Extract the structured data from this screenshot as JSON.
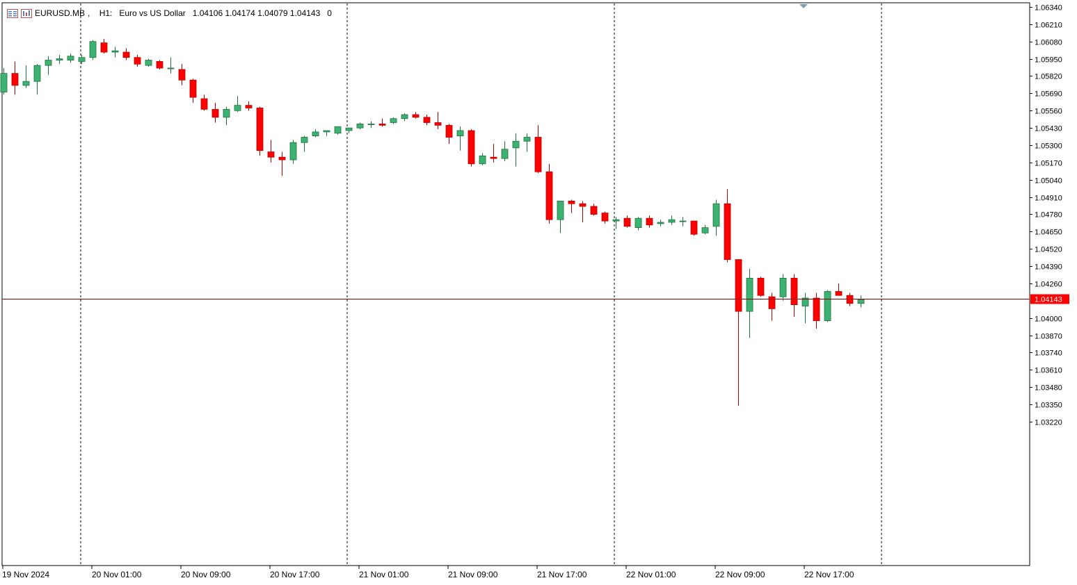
{
  "header": {
    "symbol": "EURUSD.MB",
    "timeframe": "H1:",
    "description": "Euro vs US Dollar",
    "ohlc": "1.04106 1.04174 1.04079 1.04143",
    "volume": "0",
    "icons": [
      "chart-menu-icon",
      "window-controls-icon"
    ]
  },
  "colors": {
    "bull": "#3cb371",
    "bear": "#ff0000",
    "grid": "#000000",
    "price_line": "#8b0000",
    "price_label_bg": "#ff0000",
    "price_label_text": "#ffffff"
  },
  "price_axis": {
    "labels": [
      "1.06340",
      "1.06210",
      "1.06080",
      "1.05950",
      "1.05820",
      "1.05690",
      "1.05560",
      "1.05430",
      "1.05300",
      "1.05170",
      "1.05040",
      "1.04910",
      "1.04780",
      "1.04650",
      "1.04520",
      "1.04390",
      "1.04260",
      "1.04000",
      "1.03870",
      "1.03740",
      "1.03610",
      "1.03480",
      "1.03350",
      "1.03220"
    ],
    "current_price_label": "1.04143"
  },
  "time_axis": {
    "labels": [
      "19 Nov 2024",
      "20 Nov 01:00",
      "20 Nov 09:00",
      "20 Nov 17:00",
      "21 Nov 01:00",
      "21 Nov 09:00",
      "21 Nov 17:00",
      "22 Nov 01:00",
      "22 Nov 09:00",
      "22 Nov 17:00"
    ]
  },
  "chart_data": {
    "type": "candlestick",
    "symbol": "EURUSD.MB",
    "timeframe": "H1",
    "current_price": 1.04143,
    "ylim": [
      1.0316,
      1.0638
    ],
    "candles": [
      {
        "o": 1.057,
        "h": 1.0588,
        "l": 1.0568,
        "c": 1.0584
      },
      {
        "o": 1.0584,
        "h": 1.0593,
        "l": 1.0568,
        "c": 1.0575
      },
      {
        "o": 1.0575,
        "h": 1.059,
        "l": 1.0573,
        "c": 1.0578
      },
      {
        "o": 1.0578,
        "h": 1.0591,
        "l": 1.0568,
        "c": 1.059
      },
      {
        "o": 1.059,
        "h": 1.0597,
        "l": 1.0583,
        "c": 1.0594
      },
      {
        "o": 1.0594,
        "h": 1.0598,
        "l": 1.0591,
        "c": 1.0595
      },
      {
        "o": 1.0594,
        "h": 1.0599,
        "l": 1.0592,
        "c": 1.0597
      },
      {
        "o": 1.0593,
        "h": 1.0598,
        "l": 1.0591,
        "c": 1.0596
      },
      {
        "o": 1.0596,
        "h": 1.0609,
        "l": 1.0594,
        "c": 1.0608
      },
      {
        "o": 1.0607,
        "h": 1.061,
        "l": 1.0599,
        "c": 1.06
      },
      {
        "o": 1.06,
        "h": 1.0604,
        "l": 1.0596,
        "c": 1.0601
      },
      {
        "o": 1.06,
        "h": 1.0603,
        "l": 1.0594,
        "c": 1.0596
      },
      {
        "o": 1.0596,
        "h": 1.0598,
        "l": 1.0589,
        "c": 1.0591
      },
      {
        "o": 1.059,
        "h": 1.0595,
        "l": 1.0589,
        "c": 1.0594
      },
      {
        "o": 1.0593,
        "h": 1.0594,
        "l": 1.0587,
        "c": 1.0588
      },
      {
        "o": 1.0588,
        "h": 1.0596,
        "l": 1.0584,
        "c": 1.0588
      },
      {
        "o": 1.0587,
        "h": 1.0591,
        "l": 1.0575,
        "c": 1.0579
      },
      {
        "o": 1.0579,
        "h": 1.058,
        "l": 1.0562,
        "c": 1.0566
      },
      {
        "o": 1.0565,
        "h": 1.0568,
        "l": 1.0556,
        "c": 1.0557
      },
      {
        "o": 1.0557,
        "h": 1.0562,
        "l": 1.0547,
        "c": 1.0551
      },
      {
        "o": 1.0551,
        "h": 1.0559,
        "l": 1.0545,
        "c": 1.0557
      },
      {
        "o": 1.0556,
        "h": 1.0567,
        "l": 1.0555,
        "c": 1.056
      },
      {
        "o": 1.056,
        "h": 1.0563,
        "l": 1.0556,
        "c": 1.0558
      },
      {
        "o": 1.0558,
        "h": 1.0559,
        "l": 1.0522,
        "c": 1.0526
      },
      {
        "o": 1.0525,
        "h": 1.0534,
        "l": 1.0517,
        "c": 1.0521
      },
      {
        "o": 1.0521,
        "h": 1.0525,
        "l": 1.0507,
        "c": 1.0519
      },
      {
        "o": 1.0519,
        "h": 1.0534,
        "l": 1.0516,
        "c": 1.0532
      },
      {
        "o": 1.0532,
        "h": 1.0537,
        "l": 1.0525,
        "c": 1.0536
      },
      {
        "o": 1.0537,
        "h": 1.0542,
        "l": 1.0536,
        "c": 1.054
      },
      {
        "o": 1.054,
        "h": 1.0541,
        "l": 1.0537,
        "c": 1.0541
      },
      {
        "o": 1.0539,
        "h": 1.0544,
        "l": 1.0538,
        "c": 1.0544
      },
      {
        "o": 1.0541,
        "h": 1.0543,
        "l": 1.0539,
        "c": 1.0543
      },
      {
        "o": 1.0543,
        "h": 1.0547,
        "l": 1.0542,
        "c": 1.0546
      },
      {
        "o": 1.0546,
        "h": 1.0548,
        "l": 1.0543,
        "c": 1.0546
      },
      {
        "o": 1.0546,
        "h": 1.055,
        "l": 1.0544,
        "c": 1.0545
      },
      {
        "o": 1.0547,
        "h": 1.0551,
        "l": 1.0546,
        "c": 1.055
      },
      {
        "o": 1.055,
        "h": 1.0554,
        "l": 1.0548,
        "c": 1.0553
      },
      {
        "o": 1.0553,
        "h": 1.0555,
        "l": 1.055,
        "c": 1.0551
      },
      {
        "o": 1.0551,
        "h": 1.0553,
        "l": 1.0545,
        "c": 1.0547
      },
      {
        "o": 1.0547,
        "h": 1.0555,
        "l": 1.0542,
        "c": 1.0545
      },
      {
        "o": 1.0545,
        "h": 1.0546,
        "l": 1.0531,
        "c": 1.0536
      },
      {
        "o": 1.0537,
        "h": 1.0544,
        "l": 1.0526,
        "c": 1.0541
      },
      {
        "o": 1.0541,
        "h": 1.0542,
        "l": 1.0514,
        "c": 1.0516
      },
      {
        "o": 1.0516,
        "h": 1.0524,
        "l": 1.0515,
        "c": 1.0522
      },
      {
        "o": 1.0521,
        "h": 1.0531,
        "l": 1.0517,
        "c": 1.052
      },
      {
        "o": 1.052,
        "h": 1.0533,
        "l": 1.0518,
        "c": 1.0527
      },
      {
        "o": 1.0528,
        "h": 1.0539,
        "l": 1.0514,
        "c": 1.0533
      },
      {
        "o": 1.0533,
        "h": 1.0539,
        "l": 1.0525,
        "c": 1.0536
      },
      {
        "o": 1.0536,
        "h": 1.0545,
        "l": 1.0509,
        "c": 1.051
      },
      {
        "o": 1.051,
        "h": 1.0516,
        "l": 1.0471,
        "c": 1.0474
      },
      {
        "o": 1.0474,
        "h": 1.0488,
        "l": 1.0464,
        "c": 1.0488
      },
      {
        "o": 1.0488,
        "h": 1.0489,
        "l": 1.0479,
        "c": 1.0486
      },
      {
        "o": 1.0486,
        "h": 1.0488,
        "l": 1.0472,
        "c": 1.0484
      },
      {
        "o": 1.0484,
        "h": 1.0486,
        "l": 1.0477,
        "c": 1.0478
      },
      {
        "o": 1.0479,
        "h": 1.048,
        "l": 1.0471,
        "c": 1.0473
      },
      {
        "o": 1.0473,
        "h": 1.0476,
        "l": 1.0467,
        "c": 1.0474
      },
      {
        "o": 1.0475,
        "h": 1.0477,
        "l": 1.0468,
        "c": 1.0469
      },
      {
        "o": 1.0468,
        "h": 1.0476,
        "l": 1.0466,
        "c": 1.0475
      },
      {
        "o": 1.0475,
        "h": 1.0477,
        "l": 1.0468,
        "c": 1.047
      },
      {
        "o": 1.0471,
        "h": 1.0474,
        "l": 1.0469,
        "c": 1.0472
      },
      {
        "o": 1.0472,
        "h": 1.0477,
        "l": 1.047,
        "c": 1.0474
      },
      {
        "o": 1.0473,
        "h": 1.0476,
        "l": 1.0469,
        "c": 1.0473
      },
      {
        "o": 1.0473,
        "h": 1.0473,
        "l": 1.0462,
        "c": 1.0463
      },
      {
        "o": 1.0464,
        "h": 1.047,
        "l": 1.0463,
        "c": 1.0468
      },
      {
        "o": 1.0469,
        "h": 1.0489,
        "l": 1.0462,
        "c": 1.0486
      },
      {
        "o": 1.0486,
        "h": 1.0497,
        "l": 1.0442,
        "c": 1.0444
      },
      {
        "o": 1.0444,
        "h": 1.0444,
        "l": 1.0334,
        "c": 1.0405
      },
      {
        "o": 1.0405,
        "h": 1.0437,
        "l": 1.0385,
        "c": 1.043
      },
      {
        "o": 1.043,
        "h": 1.0431,
        "l": 1.0416,
        "c": 1.0417
      },
      {
        "o": 1.0416,
        "h": 1.0419,
        "l": 1.0398,
        "c": 1.0407
      },
      {
        "o": 1.0416,
        "h": 1.0433,
        "l": 1.0413,
        "c": 1.043
      },
      {
        "o": 1.043,
        "h": 1.0433,
        "l": 1.0401,
        "c": 1.041
      },
      {
        "o": 1.0409,
        "h": 1.0419,
        "l": 1.0396,
        "c": 1.0415
      },
      {
        "o": 1.0415,
        "h": 1.0419,
        "l": 1.0392,
        "c": 1.0398
      },
      {
        "o": 1.0398,
        "h": 1.0421,
        "l": 1.0397,
        "c": 1.042
      },
      {
        "o": 1.042,
        "h": 1.0426,
        "l": 1.0417,
        "c": 1.0417
      },
      {
        "o": 1.0417,
        "h": 1.0419,
        "l": 1.0409,
        "c": 1.0411
      },
      {
        "o": 1.0411,
        "h": 1.0417,
        "l": 1.0408,
        "c": 1.0414
      }
    ]
  }
}
